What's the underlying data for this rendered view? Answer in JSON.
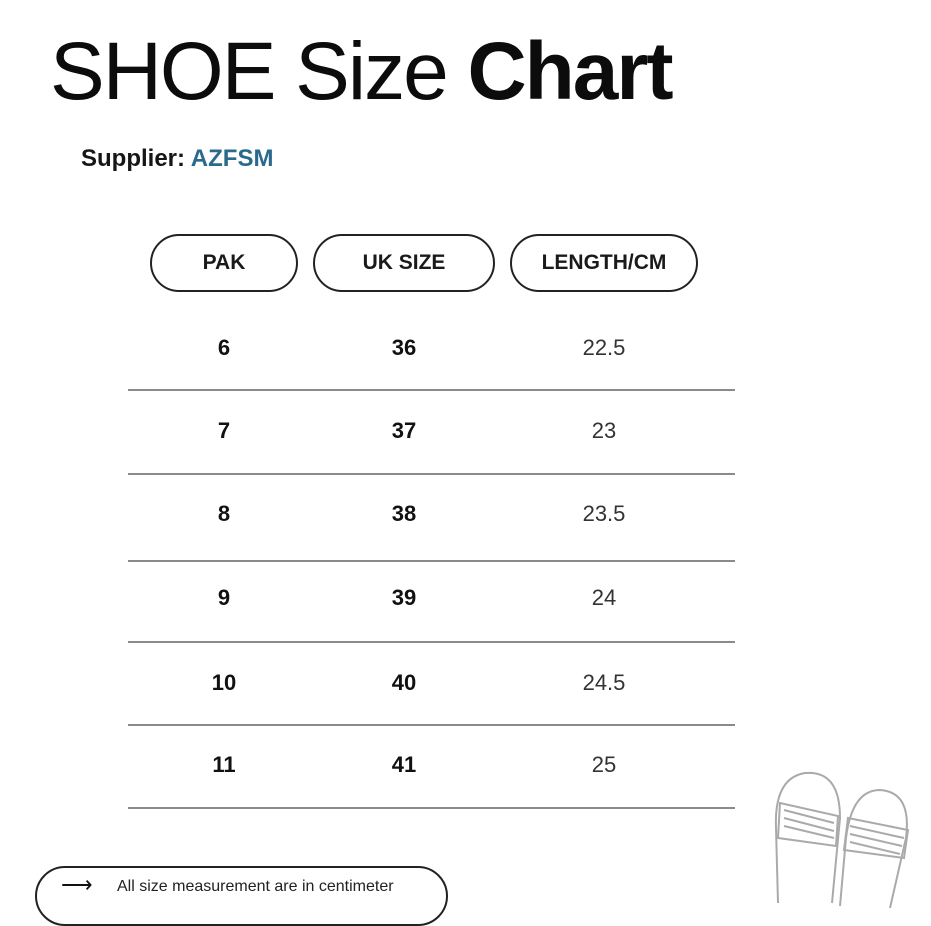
{
  "title": {
    "light": "SHOE Size ",
    "bold": "Chart"
  },
  "supplier": {
    "label": "Supplier:",
    "value": "AZFSM",
    "value_color": "#2a6a8c"
  },
  "table": {
    "headers": [
      "PAK",
      "UK SIZE",
      "LENGTH/CM"
    ],
    "rows": [
      [
        "6",
        "36",
        "22.5"
      ],
      [
        "7",
        "37",
        "23"
      ],
      [
        "8",
        "38",
        "23.5"
      ],
      [
        "9",
        "39",
        "24"
      ],
      [
        "10",
        "40",
        "24.5"
      ],
      [
        "11",
        "41",
        "25"
      ]
    ]
  },
  "note": {
    "icon": "arrow-right-icon",
    "text": "All size measurement are in centimeter"
  },
  "illustration": "slippers-icon"
}
